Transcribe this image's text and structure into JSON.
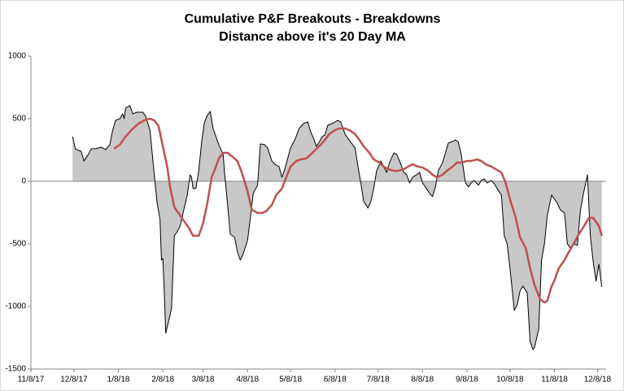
{
  "chart_data": {
    "type": "line",
    "title": "Cumulative P&F Breakouts - Breakdowns",
    "subtitle": "Distance above it's 20 Day MA",
    "xlim": [
      "2017-11-08",
      "2018-12-14"
    ],
    "xticks": [
      {
        "value": "2017-11-08",
        "label": "11/8/17"
      },
      {
        "value": "2017-12-08",
        "label": "12/8/17"
      },
      {
        "value": "2018-01-08",
        "label": "1/8/18"
      },
      {
        "value": "2018-02-08",
        "label": "2/8/18"
      },
      {
        "value": "2018-03-08",
        "label": "3/8/18"
      },
      {
        "value": "2018-04-08",
        "label": "4/8/18"
      },
      {
        "value": "2018-05-08",
        "label": "5/8/18"
      },
      {
        "value": "2018-06-08",
        "label": "6/8/18"
      },
      {
        "value": "2018-07-08",
        "label": "7/8/18"
      },
      {
        "value": "2018-08-08",
        "label": "8/8/18"
      },
      {
        "value": "2018-09-08",
        "label": "9/8/18"
      },
      {
        "value": "2018-10-08",
        "label": "10/8/18"
      },
      {
        "value": "2018-11-08",
        "label": "11/8/18"
      },
      {
        "value": "2018-12-08",
        "label": "12/8/18"
      }
    ],
    "ylim": [
      -1500,
      1000
    ],
    "yticks": [
      -1500,
      -1000,
      -500,
      0,
      500,
      1000
    ],
    "grid": false,
    "series": [
      {
        "color": "#000000",
        "fill": "#c8c8c8",
        "x": [
          "2017-12-07",
          "2017-12-09",
          "2017-12-11",
          "2017-12-13",
          "2017-12-15",
          "2017-12-18",
          "2017-12-20",
          "2017-12-23",
          "2017-12-27",
          "2017-12-30",
          "2018-01-02",
          "2018-01-04",
          "2018-01-06",
          "2018-01-09",
          "2018-01-11",
          "2018-01-12",
          "2018-01-13",
          "2018-01-16",
          "2018-01-18",
          "2018-01-21",
          "2018-01-25",
          "2018-01-27",
          "2018-01-30",
          "2018-02-02",
          "2018-02-04",
          "2018-02-06",
          "2018-02-07",
          "2018-02-08",
          "2018-02-09",
          "2018-02-10",
          "2018-02-12",
          "2018-02-14",
          "2018-02-16",
          "2018-02-18",
          "2018-02-20",
          "2018-02-23",
          "2018-02-25",
          "2018-02-27",
          "2018-02-28",
          "2018-03-01",
          "2018-03-03",
          "2018-03-05",
          "2018-03-07",
          "2018-03-09",
          "2018-03-11",
          "2018-03-13",
          "2018-03-15",
          "2018-03-17",
          "2018-03-19",
          "2018-03-22",
          "2018-03-23",
          "2018-03-25",
          "2018-03-27",
          "2018-03-30",
          "2018-04-01",
          "2018-04-03",
          "2018-04-05",
          "2018-04-08",
          "2018-04-10",
          "2018-04-12",
          "2018-04-15",
          "2018-04-17",
          "2018-04-20",
          "2018-04-22",
          "2018-04-25",
          "2018-04-27",
          "2018-04-30",
          "2018-05-02",
          "2018-05-04",
          "2018-05-06",
          "2018-05-08",
          "2018-05-11",
          "2018-05-14",
          "2018-05-17",
          "2018-05-20",
          "2018-05-22",
          "2018-05-24",
          "2018-05-26",
          "2018-05-28",
          "2018-05-30",
          "2018-06-01",
          "2018-06-03",
          "2018-06-06",
          "2018-06-08",
          "2018-06-10",
          "2018-06-12",
          "2018-06-15",
          "2018-06-17",
          "2018-06-19",
          "2018-06-22",
          "2018-06-24",
          "2018-06-26",
          "2018-06-28",
          "2018-07-01",
          "2018-07-03",
          "2018-07-05",
          "2018-07-07",
          "2018-07-10",
          "2018-07-12",
          "2018-07-14",
          "2018-07-16",
          "2018-07-19",
          "2018-07-21",
          "2018-07-23",
          "2018-07-26",
          "2018-07-28",
          "2018-07-30",
          "2018-08-01",
          "2018-08-04",
          "2018-08-06",
          "2018-08-08",
          "2018-08-10",
          "2018-08-13",
          "2018-08-15",
          "2018-08-17",
          "2018-08-19",
          "2018-08-22",
          "2018-08-24",
          "2018-08-26",
          "2018-08-29",
          "2018-08-31",
          "2018-09-02",
          "2018-09-04",
          "2018-09-07",
          "2018-09-09",
          "2018-09-11",
          "2018-09-13",
          "2018-09-16",
          "2018-09-18",
          "2018-09-20",
          "2018-09-22",
          "2018-09-25",
          "2018-09-27",
          "2018-09-29",
          "2018-10-02",
          "2018-10-04",
          "2018-10-06",
          "2018-10-08",
          "2018-10-11",
          "2018-10-13",
          "2018-10-15",
          "2018-10-17",
          "2018-10-20",
          "2018-10-22",
          "2018-10-24",
          "2018-10-25",
          "2018-10-28",
          "2018-10-30",
          "2018-11-01",
          "2018-11-03",
          "2018-11-06",
          "2018-11-08",
          "2018-11-10",
          "2018-11-12",
          "2018-11-15",
          "2018-11-17",
          "2018-11-19",
          "2018-11-22",
          "2018-11-24",
          "2018-11-26",
          "2018-11-28",
          "2018-12-01",
          "2018-12-03",
          "2018-12-05",
          "2018-12-07",
          "2018-12-09",
          "2018-12-11"
        ],
        "values": [
          357,
          260,
          247,
          240,
          162,
          214,
          260,
          260,
          273,
          253,
          292,
          409,
          487,
          500,
          539,
          500,
          584,
          604,
          539,
          552,
          552,
          519,
          409,
          52,
          -175,
          -305,
          -630,
          -617,
          -890,
          -1214,
          -1117,
          -1019,
          -435,
          -403,
          -357,
          -208,
          -110,
          52,
          32,
          -58,
          -58,
          84,
          312,
          474,
          526,
          558,
          422,
          357,
          292,
          214,
          71,
          -175,
          -422,
          -448,
          -565,
          -630,
          -578,
          -474,
          -292,
          -97,
          -32,
          299,
          292,
          266,
          162,
          136,
          117,
          32,
          97,
          182,
          266,
          331,
          422,
          461,
          474,
          396,
          344,
          279,
          312,
          357,
          370,
          448,
          461,
          474,
          487,
          474,
          377,
          344,
          312,
          266,
          117,
          -13,
          -162,
          -214,
          -162,
          -58,
          84,
          162,
          117,
          71,
          149,
          227,
          214,
          162,
          71,
          52,
          -13,
          32,
          52,
          71,
          -13,
          -45,
          -97,
          -123,
          -45,
          84,
          149,
          227,
          305,
          318,
          331,
          312,
          214,
          -13,
          -45,
          -13,
          6,
          -32,
          6,
          19,
          -13,
          6,
          -19,
          -58,
          -110,
          -435,
          -500,
          -695,
          -1032,
          -987,
          -877,
          -838,
          -890,
          -1279,
          -1344,
          -1331,
          -1182,
          -630,
          -500,
          -273,
          -110,
          -143,
          -175,
          -227,
          -253,
          -500,
          -532,
          -500,
          -513,
          -240,
          -110,
          52,
          -435,
          -643,
          -799,
          -662,
          -844
        ]
      },
      {
        "color": "#c0504d",
        "x": [
          "2018-01-05",
          "2018-01-09",
          "2018-01-13",
          "2018-01-17",
          "2018-01-22",
          "2018-01-26",
          "2018-01-30",
          "2018-02-02",
          "2018-02-05",
          "2018-02-08",
          "2018-02-11",
          "2018-02-13",
          "2018-02-16",
          "2018-02-20",
          "2018-02-24",
          "2018-02-26",
          "2018-03-01",
          "2018-03-05",
          "2018-03-08",
          "2018-03-11",
          "2018-03-14",
          "2018-03-17",
          "2018-03-19",
          "2018-03-22",
          "2018-03-25",
          "2018-03-28",
          "2018-04-01",
          "2018-04-04",
          "2018-04-08",
          "2018-04-11",
          "2018-04-15",
          "2018-04-18",
          "2018-04-21",
          "2018-04-25",
          "2018-04-28",
          "2018-05-02",
          "2018-05-05",
          "2018-05-08",
          "2018-05-12",
          "2018-05-15",
          "2018-05-19",
          "2018-05-22",
          "2018-05-25",
          "2018-05-29",
          "2018-06-01",
          "2018-06-04",
          "2018-06-08",
          "2018-06-11",
          "2018-06-15",
          "2018-06-18",
          "2018-06-22",
          "2018-06-25",
          "2018-06-28",
          "2018-07-02",
          "2018-07-05",
          "2018-07-09",
          "2018-07-12",
          "2018-07-15",
          "2018-07-19",
          "2018-07-22",
          "2018-07-26",
          "2018-07-29",
          "2018-08-01",
          "2018-08-05",
          "2018-08-08",
          "2018-08-12",
          "2018-08-15",
          "2018-08-18",
          "2018-08-22",
          "2018-08-25",
          "2018-08-29",
          "2018-09-01",
          "2018-09-04",
          "2018-09-08",
          "2018-09-11",
          "2018-09-15",
          "2018-09-18",
          "2018-09-21",
          "2018-09-25",
          "2018-09-28",
          "2018-10-02",
          "2018-10-05",
          "2018-10-08",
          "2018-10-12",
          "2018-10-15",
          "2018-10-19",
          "2018-10-22",
          "2018-10-25",
          "2018-10-29",
          "2018-11-01",
          "2018-11-03",
          "2018-11-06",
          "2018-11-08",
          "2018-11-11",
          "2018-11-15",
          "2018-11-18",
          "2018-11-22",
          "2018-11-25",
          "2018-11-28",
          "2018-12-02",
          "2018-12-05",
          "2018-12-09",
          "2018-12-11"
        ],
        "values": [
          260,
          292,
          357,
          409,
          461,
          487,
          500,
          487,
          442,
          279,
          117,
          -45,
          -208,
          -273,
          -338,
          -370,
          -435,
          -435,
          -338,
          -175,
          32,
          117,
          182,
          227,
          227,
          201,
          162,
          71,
          -78,
          -227,
          -253,
          -253,
          -240,
          -188,
          -110,
          -58,
          32,
          117,
          162,
          175,
          182,
          214,
          247,
          292,
          331,
          377,
          409,
          422,
          422,
          409,
          377,
          331,
          279,
          227,
          175,
          149,
          117,
          97,
          84,
          84,
          97,
          117,
          136,
          117,
          110,
          84,
          52,
          32,
          52,
          84,
          117,
          149,
          149,
          162,
          162,
          175,
          162,
          136,
          117,
          97,
          71,
          -13,
          -143,
          -292,
          -448,
          -532,
          -695,
          -825,
          -942,
          -968,
          -955,
          -838,
          -792,
          -695,
          -630,
          -565,
          -487,
          -422,
          -370,
          -292,
          -292,
          -357,
          -435
        ]
      }
    ]
  }
}
